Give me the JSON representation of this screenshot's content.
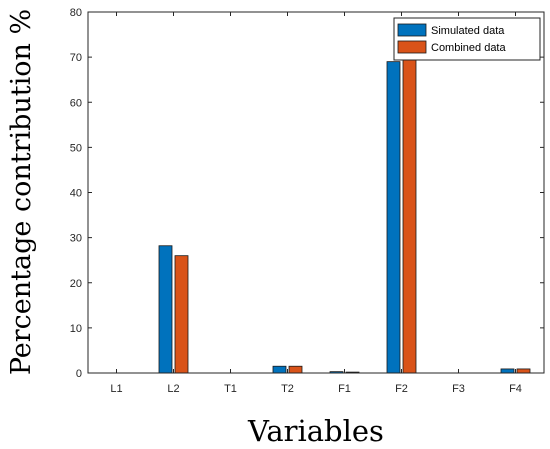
{
  "chart_data": {
    "type": "bar",
    "categories": [
      "L1",
      "L2",
      "T1",
      "T2",
      "F1",
      "F2",
      "F3",
      "F4"
    ],
    "series": [
      {
        "name": "Simulated data",
        "color": "#0072BD",
        "values": [
          0,
          28.2,
          0,
          1.5,
          0.3,
          69.0,
          0,
          0.9
        ]
      },
      {
        "name": "Combined data",
        "color": "#D95319",
        "values": [
          0,
          26.0,
          0,
          1.5,
          0.2,
          70.5,
          0,
          0.9
        ]
      }
    ],
    "xlabel": "Variables",
    "ylabel": "Percentage contribution %",
    "ylim": [
      0,
      80
    ],
    "yticks": [
      0,
      10,
      20,
      30,
      40,
      50,
      60,
      70,
      80
    ],
    "grid": false,
    "legend_position": "top-right"
  }
}
